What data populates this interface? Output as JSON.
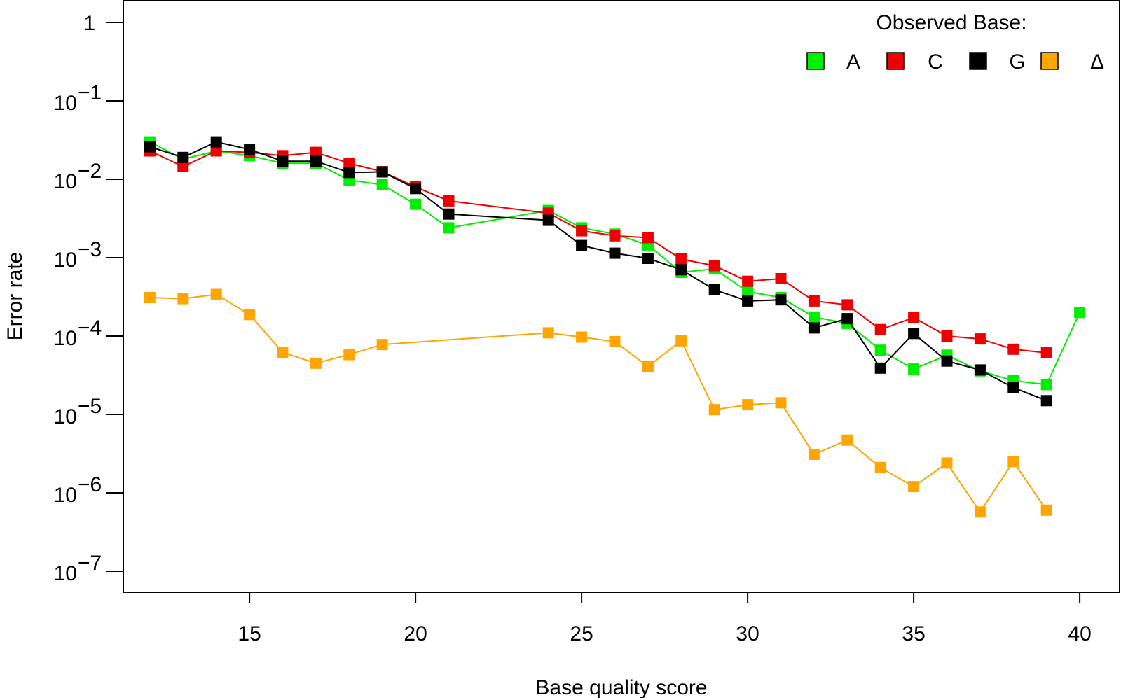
{
  "chart_data": {
    "type": "line",
    "title": "",
    "xlabel": "Base quality score",
    "ylabel": "Error rate",
    "xlim": [
      11.2,
      41.2
    ],
    "ylim": [
      1e-07,
      1
    ],
    "y_scale": "log",
    "x_ticks": [
      15,
      20,
      25,
      30,
      35,
      40
    ],
    "y_tick_labels": [
      {
        "value": 1,
        "base": "1",
        "exp": ""
      },
      {
        "value": 0.1,
        "base": "10",
        "exp": "−1"
      },
      {
        "value": 0.01,
        "base": "10",
        "exp": "−2"
      },
      {
        "value": 0.001,
        "base": "10",
        "exp": "−3"
      },
      {
        "value": 0.0001,
        "base": "10",
        "exp": "−4"
      },
      {
        "value": 1e-05,
        "base": "10",
        "exp": "−5"
      },
      {
        "value": 1e-06,
        "base": "10",
        "exp": "−6"
      },
      {
        "value": 1e-07,
        "base": "10",
        "exp": "−7"
      }
    ],
    "grid": false,
    "legend": {
      "title": "Observed Base:",
      "placement": "top-right"
    },
    "series": [
      {
        "name": "A",
        "color": "#00ee00",
        "x": [
          12,
          13,
          14,
          15,
          16,
          17,
          18,
          19,
          20,
          21,
          24,
          25,
          26,
          27,
          28,
          29,
          30,
          31,
          32,
          33,
          34,
          35,
          36,
          37,
          38,
          39,
          40
        ],
        "y": [
          0.03,
          0.018,
          0.023,
          0.02,
          0.016,
          0.016,
          0.0098,
          0.0085,
          0.0048,
          0.0024,
          0.004,
          0.0024,
          0.002,
          0.00145,
          0.00065,
          0.00072,
          0.00037,
          0.00031,
          0.000175,
          0.000145,
          6.6e-05,
          3.8e-05,
          5.7e-05,
          3.6e-05,
          2.7e-05,
          2.4e-05,
          0.0002
        ]
      },
      {
        "name": "C",
        "color": "#ee0000",
        "x": [
          12,
          13,
          14,
          15,
          16,
          17,
          18,
          19,
          20,
          21,
          24,
          25,
          26,
          27,
          28,
          29,
          30,
          31,
          32,
          33,
          34,
          35,
          36,
          37,
          38,
          39
        ],
        "y": [
          0.023,
          0.0145,
          0.023,
          0.022,
          0.02,
          0.022,
          0.016,
          0.0125,
          0.008,
          0.0053,
          0.0037,
          0.0022,
          0.0019,
          0.0018,
          0.00096,
          0.00079,
          0.0005,
          0.00054,
          0.00028,
          0.00025,
          0.000121,
          0.000172,
          0.0001,
          9.2e-05,
          6.8e-05,
          6.1e-05
        ]
      },
      {
        "name": "G",
        "color": "#000000",
        "x": [
          12,
          13,
          14,
          15,
          16,
          17,
          18,
          19,
          20,
          21,
          24,
          25,
          26,
          27,
          28,
          29,
          30,
          31,
          32,
          33,
          34,
          35,
          36,
          37,
          38,
          39
        ],
        "y": [
          0.026,
          0.019,
          0.03,
          0.024,
          0.017,
          0.017,
          0.0122,
          0.0124,
          0.0076,
          0.0036,
          0.003,
          0.00143,
          0.00114,
          0.00098,
          0.0007,
          0.00039,
          0.00028,
          0.00029,
          0.000127,
          0.000167,
          3.9e-05,
          0.000108,
          4.8e-05,
          3.7e-05,
          2.2e-05,
          1.5e-05
        ]
      },
      {
        "name": "Δ",
        "color": "#ffa500",
        "x": [
          12,
          13,
          14,
          15,
          16,
          17,
          18,
          19,
          24,
          25,
          26,
          27,
          28,
          29,
          30,
          31,
          32,
          33,
          34,
          35,
          36,
          37,
          38,
          39
        ],
        "y": [
          0.00031,
          0.0003,
          0.00034,
          0.000188,
          6.2e-05,
          4.5e-05,
          5.8e-05,
          7.8e-05,
          0.00011,
          9.7e-05,
          8.5e-05,
          4.1e-05,
          8.7e-05,
          1.15e-05,
          1.33e-05,
          1.41e-05,
          3.1e-06,
          4.7e-06,
          2.1e-06,
          1.2e-06,
          2.4e-06,
          5.7e-07,
          2.5e-06,
          6e-07
        ]
      }
    ]
  }
}
